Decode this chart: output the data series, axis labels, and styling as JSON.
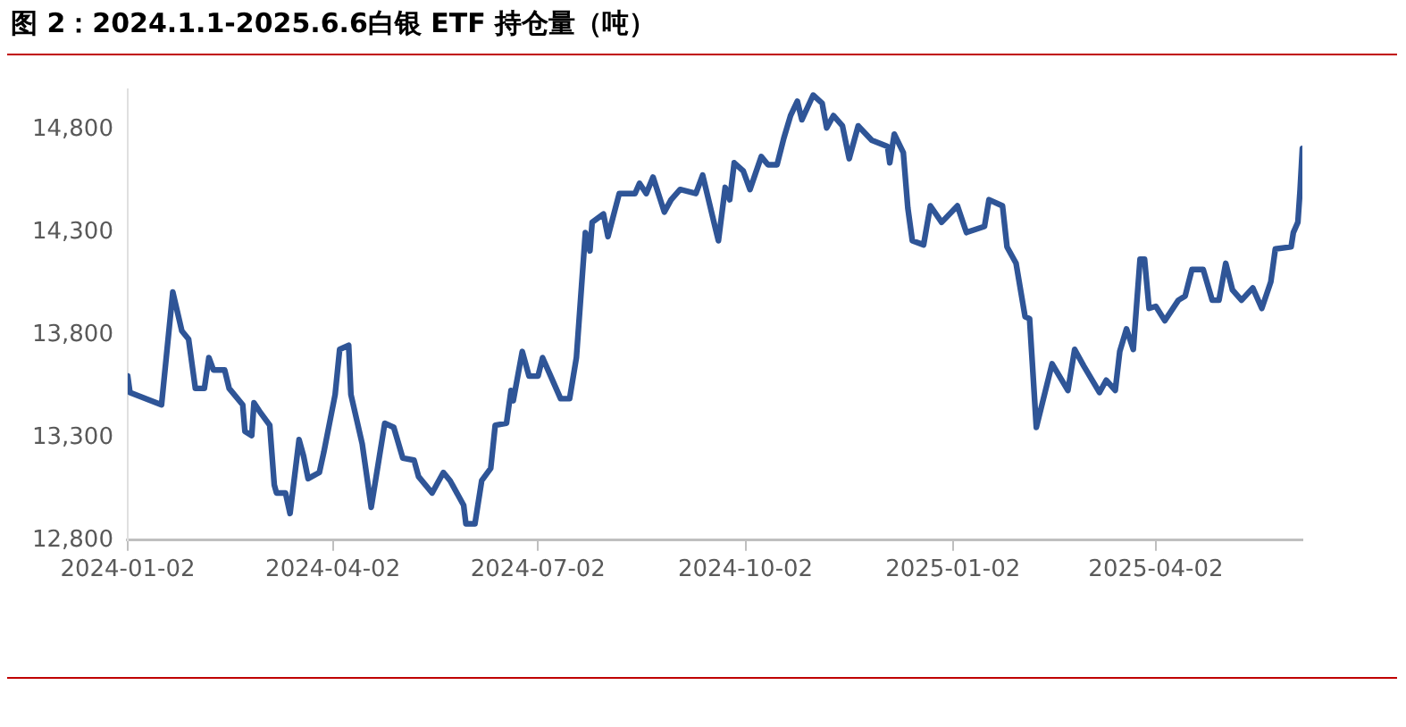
{
  "chart_data": {
    "type": "line",
    "title": "图 2：2024.1.1-2025.6.6白银 ETF 持仓量（吨）",
    "xlim": [
      "2024-01-02",
      "2025-06-06"
    ],
    "xticks": [
      "2024-01-02",
      "2024-04-02",
      "2024-07-02",
      "2024-10-02",
      "2025-01-02",
      "2025-04-02"
    ],
    "ylim": [
      12800,
      15000
    ],
    "yticks": [
      {
        "value": 12800,
        "label": "12,800"
      },
      {
        "value": 13300,
        "label": "13,300"
      },
      {
        "value": 13800,
        "label": "13,800"
      },
      {
        "value": 14300,
        "label": "14,300"
      },
      {
        "value": 14800,
        "label": "14,800"
      }
    ],
    "grid": false,
    "legend": false,
    "marker": "none",
    "line_style": "solid",
    "x": [
      "2024-01-02",
      "2024-01-03",
      "2024-01-17",
      "2024-01-22",
      "2024-01-26",
      "2024-01-29",
      "2024-02-01",
      "2024-02-05",
      "2024-02-07",
      "2024-02-09",
      "2024-02-14",
      "2024-02-16",
      "2024-02-22",
      "2024-02-23",
      "2024-02-26",
      "2024-02-27",
      "2024-03-01",
      "2024-03-05",
      "2024-03-07",
      "2024-03-08",
      "2024-03-12",
      "2024-03-14",
      "2024-03-18",
      "2024-03-20",
      "2024-03-22",
      "2024-03-27",
      "2024-03-29",
      "2024-04-03",
      "2024-04-05",
      "2024-04-09",
      "2024-04-10",
      "2024-04-15",
      "2024-04-19",
      "2024-04-25",
      "2024-04-29",
      "2024-05-03",
      "2024-05-08",
      "2024-05-10",
      "2024-05-16",
      "2024-05-21",
      "2024-05-24",
      "2024-05-30",
      "2024-05-31",
      "2024-06-04",
      "2024-06-07",
      "2024-06-11",
      "2024-06-13",
      "2024-06-18",
      "2024-06-20",
      "2024-06-21",
      "2024-06-25",
      "2024-06-28",
      "2024-07-02",
      "2024-07-04",
      "2024-07-08",
      "2024-07-12",
      "2024-07-16",
      "2024-07-19",
      "2024-07-23",
      "2024-07-25",
      "2024-07-26",
      "2024-07-31",
      "2024-08-02",
      "2024-08-07",
      "2024-08-14",
      "2024-08-16",
      "2024-08-19",
      "2024-08-22",
      "2024-08-27",
      "2024-08-30",
      "2024-09-03",
      "2024-09-10",
      "2024-09-13",
      "2024-09-18",
      "2024-09-20",
      "2024-09-23",
      "2024-09-25",
      "2024-09-27",
      "2024-10-01",
      "2024-10-04",
      "2024-10-09",
      "2024-10-12",
      "2024-10-16",
      "2024-10-19",
      "2024-10-22",
      "2024-10-25",
      "2024-10-27",
      "2024-11-01",
      "2024-11-05",
      "2024-11-07",
      "2024-11-10",
      "2024-11-14",
      "2024-11-17",
      "2024-11-21",
      "2024-11-27",
      "2024-12-04",
      "2024-12-05",
      "2024-12-07",
      "2024-12-11",
      "2024-12-13",
      "2024-12-15",
      "2024-12-20",
      "2024-12-23",
      "2024-12-28",
      "2025-01-04",
      "2025-01-08",
      "2025-01-16",
      "2025-01-18",
      "2025-01-24",
      "2025-01-26",
      "2025-01-30",
      "2025-02-03",
      "2025-02-05",
      "2025-02-08",
      "2025-02-15",
      "2025-02-22",
      "2025-02-25",
      "2025-03-01",
      "2025-03-08",
      "2025-03-11",
      "2025-03-15",
      "2025-03-17",
      "2025-03-20",
      "2025-03-23",
      "2025-03-26",
      "2025-03-28",
      "2025-03-30",
      "2025-04-02",
      "2025-04-06",
      "2025-04-12",
      "2025-04-15",
      "2025-04-18",
      "2025-04-23",
      "2025-04-27",
      "2025-04-30",
      "2025-05-03",
      "2025-05-06",
      "2025-05-10",
      "2025-05-15",
      "2025-05-19",
      "2025-05-23",
      "2025-05-25",
      "2025-06-01",
      "2025-06-02",
      "2025-06-04",
      "2025-06-05",
      "2025-06-06"
    ],
    "series": [
      {
        "color": "#2f5597",
        "values": [
          13600,
          13520,
          13460,
          14010,
          13820,
          13780,
          13540,
          13540,
          13690,
          13630,
          13630,
          13540,
          13460,
          13330,
          13310,
          13470,
          13420,
          13360,
          13070,
          13030,
          13030,
          12930,
          13290,
          13210,
          13100,
          13130,
          13230,
          13510,
          13730,
          13750,
          13510,
          13270,
          12960,
          13370,
          13350,
          13200,
          13190,
          13110,
          13030,
          13130,
          13090,
          12970,
          12880,
          12880,
          13090,
          13150,
          13360,
          13370,
          13530,
          13480,
          13720,
          13600,
          13600,
          13690,
          13590,
          13490,
          13490,
          13690,
          14300,
          14210,
          14350,
          14390,
          14280,
          14490,
          14490,
          14540,
          14490,
          14570,
          14400,
          14460,
          14510,
          14490,
          14580,
          14350,
          14260,
          14520,
          14460,
          14640,
          14600,
          14510,
          14670,
          14630,
          14630,
          14760,
          14870,
          14940,
          14850,
          14970,
          14930,
          14810,
          14870,
          14820,
          14660,
          14820,
          14750,
          14720,
          14640,
          14780,
          14690,
          14420,
          14260,
          14240,
          14430,
          14350,
          14430,
          14300,
          14330,
          14460,
          14430,
          14230,
          14150,
          13890,
          13880,
          13350,
          13660,
          13530,
          13730,
          13650,
          13520,
          13580,
          13530,
          13720,
          13830,
          13730,
          14170,
          14170,
          13930,
          13940,
          13870,
          13970,
          13990,
          14120,
          14120,
          13970,
          13970,
          14150,
          14020,
          13970,
          14030,
          13930,
          14060,
          14220,
          14230,
          14300,
          14350,
          14510,
          14710
        ]
      }
    ]
  }
}
